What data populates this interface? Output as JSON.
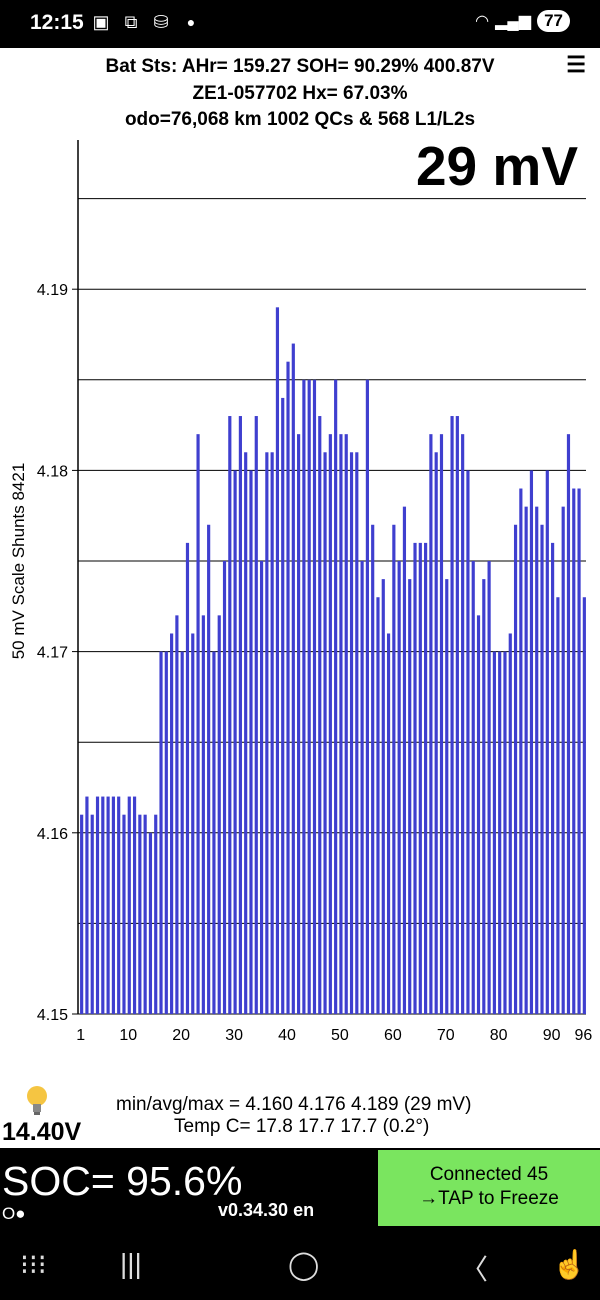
{
  "status_bar": {
    "time": "12:15",
    "icons": [
      "gallery-icon",
      "screenshot-icon",
      "shopping-bag-icon",
      "notification-dot"
    ],
    "battery": "77"
  },
  "header": {
    "line1": "Bat Sts:  AHr= 159.27  SOH= 90.29%  400.87V",
    "line2": "ZE1-057702  Hx= 67.03%",
    "line3": "odo=76,068 km  1002 QCs & 568 L1/L2s",
    "menu": "☰"
  },
  "big_mv": "29 mV",
  "chart_data": {
    "type": "bar",
    "ylabel": "50 mV Scale   Shunts 8421",
    "ylim": [
      4.15,
      4.2
    ],
    "yticks": [
      "4.15",
      "4.16",
      "4.17",
      "4.18",
      "4.19",
      "4.20"
    ],
    "xticks": [
      "1",
      "10",
      "20",
      "30",
      "40",
      "50",
      "60",
      "70",
      "80",
      "90",
      "96"
    ],
    "bar_color": "#3f3fcf",
    "grid": true,
    "values": [
      4.161,
      4.162,
      4.161,
      4.162,
      4.162,
      4.162,
      4.162,
      4.162,
      4.161,
      4.162,
      4.162,
      4.161,
      4.161,
      4.16,
      4.161,
      4.17,
      4.17,
      4.171,
      4.172,
      4.17,
      4.176,
      4.171,
      4.182,
      4.172,
      4.177,
      4.17,
      4.172,
      4.175,
      4.183,
      4.18,
      4.183,
      4.181,
      4.18,
      4.183,
      4.175,
      4.181,
      4.181,
      4.189,
      4.184,
      4.186,
      4.187,
      4.182,
      4.185,
      4.185,
      4.185,
      4.183,
      4.181,
      4.182,
      4.185,
      4.182,
      4.182,
      4.181,
      4.181,
      4.175,
      4.185,
      4.177,
      4.173,
      4.174,
      4.171,
      4.177,
      4.175,
      4.178,
      4.174,
      4.176,
      4.176,
      4.176,
      4.182,
      4.181,
      4.182,
      4.174,
      4.183,
      4.183,
      4.182,
      4.18,
      4.175,
      4.172,
      4.174,
      4.175,
      4.17,
      4.17,
      4.17,
      4.171,
      4.177,
      4.179,
      4.178,
      4.18,
      4.178,
      4.177,
      4.18,
      4.176,
      4.173,
      4.178,
      4.182,
      4.179,
      4.179,
      4.173
    ]
  },
  "battery_v": "14.40V",
  "stats": {
    "minavgmax": "min/avg/max = 4.160 4.176 4.189  (29 mV)",
    "temp": "Temp C= 17.8  17.7  17.7  (0.2°)"
  },
  "soc": "SOC= 95.6%",
  "odot": "O●",
  "version": "v0.34.30 en",
  "connect": {
    "line1": "Connected 45",
    "line2": "→TAP to Freeze",
    "color": "#7ae55f"
  },
  "nav": {
    "left": "⁝⁝⁝",
    "recents": "|||",
    "home": "◯",
    "back": "〈"
  }
}
